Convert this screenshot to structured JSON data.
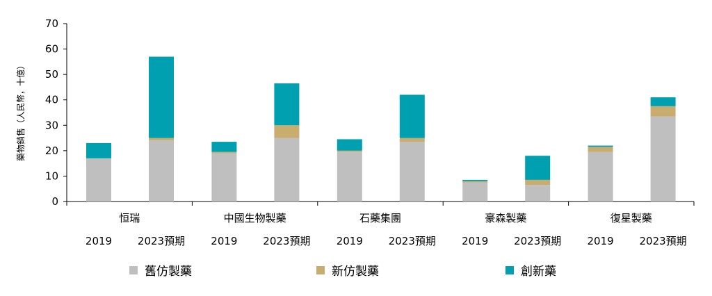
{
  "chart_data": {
    "type": "bar",
    "stacked": true,
    "title": "",
    "xlabel": "",
    "ylabel": "藥物銷售（人民幣，十億）",
    "ylim": [
      0,
      70
    ],
    "yticks": [
      0,
      10,
      20,
      30,
      40,
      50,
      60,
      70
    ],
    "grid": false,
    "legend_position": "bottom",
    "groups": [
      {
        "name": "恒瑞",
        "bars": [
          "2019",
          "2023預期"
        ]
      },
      {
        "name": "中國生物製藥",
        "bars": [
          "2019",
          "2023預期"
        ]
      },
      {
        "name": "石藥集團",
        "bars": [
          "2019",
          "2023預期"
        ]
      },
      {
        "name": "豪森製藥",
        "bars": [
          "2019",
          "2023預期"
        ]
      },
      {
        "name": "復星製藥",
        "bars": [
          "2019",
          "2023預期"
        ]
      }
    ],
    "series": [
      {
        "name": "舊仿製藥",
        "color": "#bfbfbf",
        "values": [
          17,
          24,
          19,
          25,
          19.5,
          23.5,
          7.5,
          6.5,
          19.5,
          33.5
        ]
      },
      {
        "name": "新仿製藥",
        "color": "#c8ad6f",
        "values": [
          0,
          1,
          0.5,
          5,
          0.5,
          1.5,
          0.5,
          2,
          2,
          4
        ]
      },
      {
        "name": "創新藥",
        "color": "#00a0b0",
        "values": [
          6,
          32,
          4,
          16.5,
          4.5,
          17,
          0.5,
          9.5,
          0.5,
          3.5
        ]
      }
    ]
  }
}
